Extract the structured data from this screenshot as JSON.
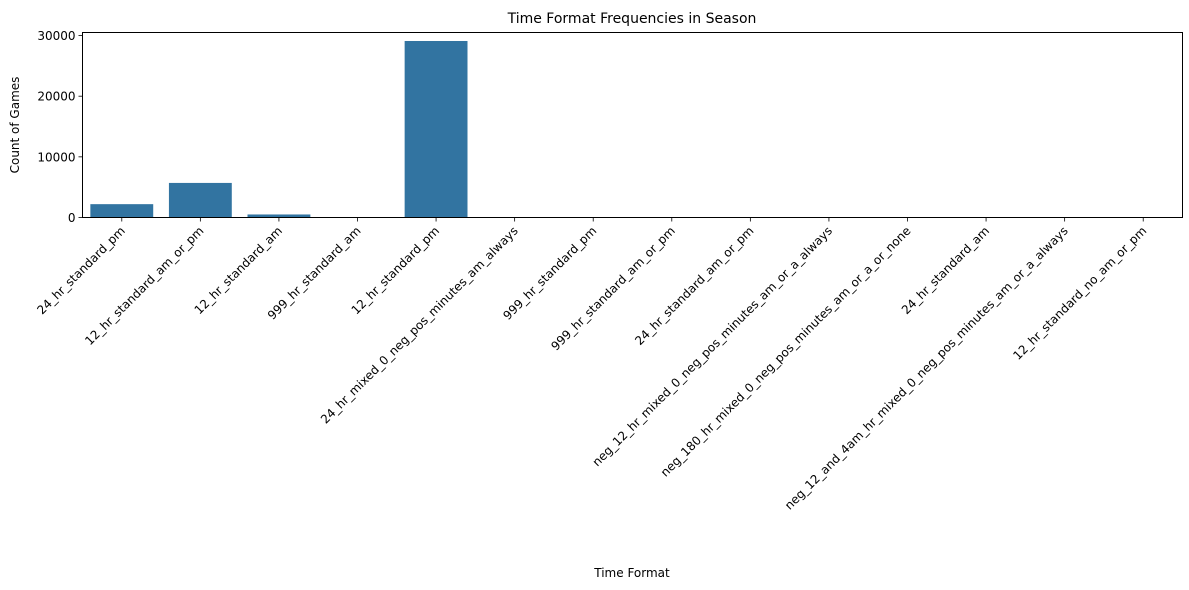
{
  "chart_data": {
    "type": "bar",
    "title": "Time Format Frequencies in Season",
    "xlabel": "Time Format",
    "ylabel": "Count of Games",
    "categories": [
      "24_hr_standard_pm",
      "12_hr_standard_am_or_pm",
      "12_hr_standard_am",
      "999_hr_standard_am",
      "12_hr_standard_pm",
      "24_hr_mixed_0_neg_pos_minutes_am_always",
      "999_hr_standard_pm",
      "999_hr_standard_am_or_pm",
      "24_hr_standard_am_or_pm",
      "neg_12_hr_mixed_0_neg_pos_minutes_am_or_a_always",
      "neg_180_hr_mixed_0_neg_pos_minutes_am_or_a_or_none",
      "24_hr_standard_am",
      "neg_12_and_4am_hr_mixed_0_neg_pos_minutes_am_or_a_always",
      "12_hr_standard_no_am_or_pm"
    ],
    "values": [
      2200,
      5700,
      500,
      10,
      29100,
      5,
      5,
      5,
      5,
      5,
      5,
      5,
      5,
      5
    ],
    "ylim": [
      0,
      30500
    ],
    "yticks": [
      0,
      10000,
      20000,
      30000
    ],
    "bar_color": "#3274a1",
    "grid": false,
    "legend": false
  }
}
